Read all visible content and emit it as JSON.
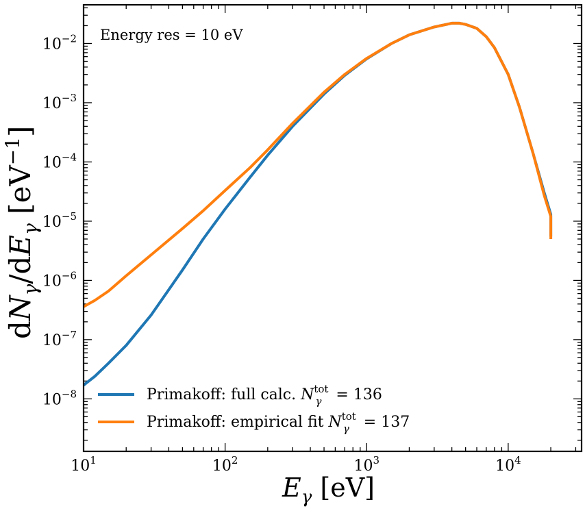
{
  "chart_data": {
    "type": "line",
    "xscale": "log",
    "yscale": "log",
    "xlim": [
      10,
      33000
    ],
    "ylim": [
      1.3e-09,
      0.045
    ],
    "xlabel": "E_γ [eV]",
    "ylabel": "dN_γ/dE_γ [eV^-1]",
    "annotation": "Energy res = 10 eV",
    "legend_position": "lower-left",
    "x_ticks": [
      {
        "base": "10",
        "exp": "1",
        "value": 10
      },
      {
        "base": "10",
        "exp": "2",
        "value": 100
      },
      {
        "base": "10",
        "exp": "3",
        "value": 1000
      },
      {
        "base": "10",
        "exp": "4",
        "value": 10000
      }
    ],
    "y_ticks": [
      {
        "base": "10",
        "exp": "−2",
        "value": 0.01
      },
      {
        "base": "10",
        "exp": "−3",
        "value": 0.001
      },
      {
        "base": "10",
        "exp": "−4",
        "value": 0.0001
      },
      {
        "base": "10",
        "exp": "−5",
        "value": 1e-05
      },
      {
        "base": "10",
        "exp": "−6",
        "value": 1e-06
      },
      {
        "base": "10",
        "exp": "−7",
        "value": 1e-07
      },
      {
        "base": "10",
        "exp": "−8",
        "value": 1e-08
      }
    ],
    "series": [
      {
        "name": "Primakoff: full calc.",
        "legend_total": "136",
        "color": "#1f77b4",
        "points": [
          [
            10,
            1.7e-08
          ],
          [
            12,
            2.4e-08
          ],
          [
            15,
            4e-08
          ],
          [
            20,
            8e-08
          ],
          [
            30,
            2.6e-07
          ],
          [
            50,
            1.5e-06
          ],
          [
            70,
            5e-06
          ],
          [
            100,
            1.6e-05
          ],
          [
            150,
            5.5e-05
          ],
          [
            200,
            0.00013
          ],
          [
            300,
            0.0004
          ],
          [
            500,
            0.0014
          ],
          [
            700,
            0.0029
          ],
          [
            1000,
            0.0055
          ],
          [
            1500,
            0.01
          ],
          [
            2000,
            0.014
          ],
          [
            3000,
            0.019
          ],
          [
            4000,
            0.022
          ],
          [
            4500,
            0.022
          ],
          [
            5000,
            0.021
          ],
          [
            6000,
            0.018
          ],
          [
            7000,
            0.013
          ],
          [
            8000,
            0.0085
          ],
          [
            10000,
            0.003
          ],
          [
            12000,
            0.00085
          ],
          [
            15000,
            0.00014
          ],
          [
            18000,
            3e-05
          ],
          [
            20000,
            1.3e-05
          ],
          [
            20000,
            5.5e-06
          ]
        ]
      },
      {
        "name": "Primakoff: empirical fit",
        "legend_total": "137",
        "color": "#ff7f0e",
        "points": [
          [
            10,
            3.6e-07
          ],
          [
            12,
            4.6e-07
          ],
          [
            15,
            6.6e-07
          ],
          [
            20,
            1.2e-06
          ],
          [
            30,
            2.7e-06
          ],
          [
            50,
            7.5e-06
          ],
          [
            70,
            1.5e-05
          ],
          [
            100,
            3.3e-05
          ],
          [
            150,
            8e-05
          ],
          [
            200,
            0.00016
          ],
          [
            300,
            0.00045
          ],
          [
            500,
            0.0015
          ],
          [
            700,
            0.003
          ],
          [
            1000,
            0.0056
          ],
          [
            1500,
            0.01
          ],
          [
            2000,
            0.014
          ],
          [
            3000,
            0.019
          ],
          [
            4000,
            0.022
          ],
          [
            4500,
            0.022
          ],
          [
            5000,
            0.021
          ],
          [
            6000,
            0.018
          ],
          [
            7000,
            0.013
          ],
          [
            8000,
            0.0085
          ],
          [
            10000,
            0.003
          ],
          [
            12000,
            0.00085
          ],
          [
            15000,
            0.00014
          ],
          [
            18000,
            2.7e-05
          ],
          [
            20000,
            1.2e-05
          ],
          [
            20000,
            5e-06
          ]
        ]
      }
    ]
  }
}
